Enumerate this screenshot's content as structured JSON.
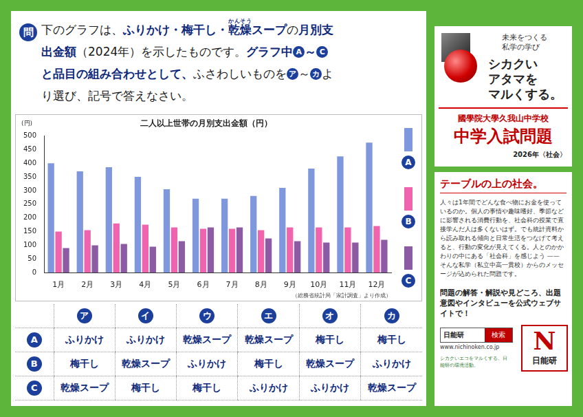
{
  "question": {
    "mark": "問",
    "segments": [
      {
        "text": "下のグラフは、"
      },
      {
        "text": "ふりかけ・梅干し・",
        "strong": true
      },
      {
        "text": "乾燥",
        "ruby": "かんそう",
        "strong": true
      },
      {
        "text": "スープ",
        "strong": true
      },
      {
        "text": "の"
      },
      {
        "text": "月別支出金額",
        "strong": true
      },
      {
        "text": "（2024年）を示したものです。"
      },
      {
        "text": "グラフ中",
        "strong": true
      },
      {
        "text": "A",
        "circle": true
      },
      {
        "text": "～",
        "strong": true
      },
      {
        "text": "C",
        "circle": true
      },
      {
        "text": "と品目の組み合わせとして、",
        "strong": true
      },
      {
        "text": "ふさわしいものを"
      },
      {
        "text": "ア",
        "circle": true
      },
      {
        "text": "～"
      },
      {
        "text": "カ",
        "circle": true
      },
      {
        "text": "より選び、記号で答えなさい。"
      }
    ]
  },
  "chart_data": {
    "type": "bar",
    "title": "二人以上世帯の月別支出金額（円）",
    "y_label": "(円)",
    "source": "（総務省統計局「家計調査」より作成）",
    "categories": [
      "1月",
      "2月",
      "3月",
      "4月",
      "5月",
      "6月",
      "7月",
      "8月",
      "9月",
      "10月",
      "11月",
      "12月"
    ],
    "series": [
      {
        "name": "A",
        "color": "#7f97dc",
        "values": [
          400,
          370,
          385,
          350,
          305,
          270,
          270,
          280,
          310,
          380,
          425,
          475
        ]
      },
      {
        "name": "B",
        "color": "#ef64ad",
        "values": [
          150,
          155,
          180,
          175,
          165,
          160,
          160,
          155,
          165,
          165,
          165,
          170
        ]
      },
      {
        "name": "C",
        "color": "#8d5aa4",
        "values": [
          90,
          100,
          105,
          95,
          115,
          165,
          165,
          125,
          115,
          110,
          110,
          120
        ]
      }
    ],
    "ylim": [
      0,
      500
    ],
    "yticks": [
      0,
      50,
      100,
      150,
      200,
      250,
      300,
      350,
      400,
      450,
      500
    ],
    "grid": false,
    "legend": "right"
  },
  "answer_table": {
    "columns": [
      "ア",
      "イ",
      "ウ",
      "エ",
      "オ",
      "カ"
    ],
    "rows": [
      {
        "label": "A",
        "items": [
          "ふりかけ",
          "ふりかけ",
          "乾燥スープ",
          "乾燥スープ",
          "梅干し",
          "梅干し"
        ]
      },
      {
        "label": "B",
        "items": [
          "梅干し",
          "乾燥スープ",
          "ふりかけ",
          "梅干し",
          "乾燥スープ",
          "ふりかけ"
        ]
      },
      {
        "label": "C",
        "items": [
          "乾燥スープ",
          "梅干し",
          "梅干し",
          "ふりかけ",
          "ふりかけ",
          "乾燥スープ"
        ]
      }
    ]
  },
  "side": {
    "motto": "未来をつくる私学の学び",
    "catch_lines": [
      "シカクい",
      "アタマを",
      "マルくする。"
    ],
    "school": "國學院大學久我山中学校",
    "exam": "中学入試問題",
    "year": "2026年〈社会〉",
    "column_title": "テーブルの上の社会。",
    "column_text": "人々は1年間でどんな食べ物にお金を使っているのか。個人の事情や趣味嗜好、季節などに影響される消費行動を、社会科の授業で直接学んだ人は多くないはず。でも統計資料から読み取れる傾向と日常生活をつなげて考えると、行動の変化が見えてくる。人とのかかわりの中にある「社会科」を感じよう —— そんな私学（私立中高一貫校）からのメッセージが込められた問題です。",
    "promo": "問題の解答・解説や見どころ、出題意図やインタビューを公式ウェブサイトで！",
    "search_name": "日能研",
    "search_button": "検索",
    "url": "www.nichinoken.co.jp",
    "eco": "シカクいエコをマルくする。日能研の環境活動。",
    "logo_letter": "N",
    "logo_name": "日能研"
  }
}
